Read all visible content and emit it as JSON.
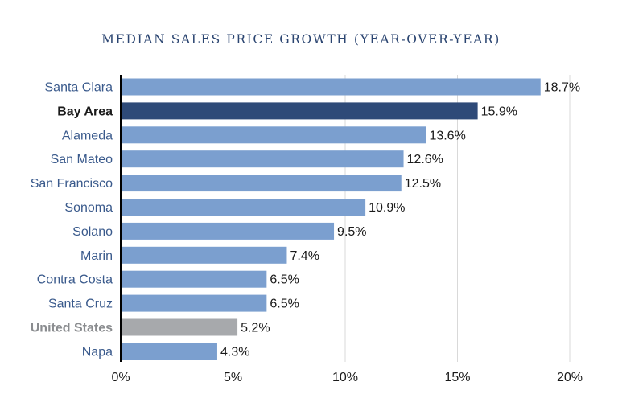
{
  "chart_data": {
    "type": "bar",
    "orientation": "horizontal",
    "title": "MEDIAN SALES PRICE GROWTH (YEAR-OVER-YEAR)",
    "xlabel": "",
    "ylabel": "",
    "xlim": [
      0,
      20
    ],
    "ticks": [
      0,
      5,
      10,
      15,
      20
    ],
    "tick_labels": [
      "0%",
      "5%",
      "10%",
      "15%",
      "20%"
    ],
    "grid": "vertical",
    "categories": [
      "Santa Clara",
      "Bay Area",
      "Alameda",
      "San Mateo",
      "San Francisco",
      "Sonoma",
      "Solano",
      "Marin",
      "Contra Costa",
      "Santa Cruz",
      "United States",
      "Napa"
    ],
    "values": [
      18.7,
      15.9,
      13.6,
      12.6,
      12.5,
      10.9,
      9.5,
      7.4,
      6.5,
      6.5,
      5.2,
      4.3
    ],
    "value_labels": [
      "18.7%",
      "15.9%",
      "13.6%",
      "12.6%",
      "12.5%",
      "10.9%",
      "9.5%",
      "7.4%",
      "6.5%",
      "6.5%",
      "5.2%",
      "4.3%"
    ],
    "bar_colors": [
      "#7b9fcf",
      "#2e4a78",
      "#7b9fcf",
      "#7b9fcf",
      "#7b9fcf",
      "#7b9fcf",
      "#7b9fcf",
      "#7b9fcf",
      "#7b9fcf",
      "#7b9fcf",
      "#a7a9ac",
      "#7b9fcf"
    ],
    "label_colors": [
      "#3a5a8c",
      "#1a1a1a",
      "#3a5a8c",
      "#3a5a8c",
      "#3a5a8c",
      "#3a5a8c",
      "#3a5a8c",
      "#3a5a8c",
      "#3a5a8c",
      "#3a5a8c",
      "#8a8c8f",
      "#3a5a8c"
    ],
    "bold_categories": [
      "Bay Area",
      "United States"
    ],
    "colors": {
      "title": "#2b4571",
      "grid": "#d9d9d9",
      "axis": "#000000"
    }
  }
}
